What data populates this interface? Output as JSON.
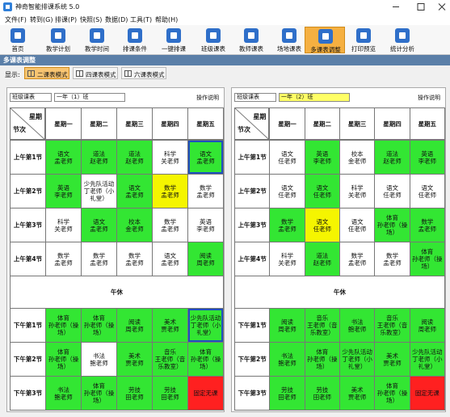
{
  "window": {
    "title": "神奇智能排课系统 5.0"
  },
  "menu": [
    "文件(F)",
    "转到(G)",
    "排课(P)",
    "快照(S)",
    "数据(D)",
    "工具(T)",
    "帮助(H)"
  ],
  "toolbar": [
    {
      "label": "首页",
      "active": false
    },
    {
      "label": "教学计划",
      "active": false
    },
    {
      "label": "教学时间",
      "active": false
    },
    {
      "label": "排课条件",
      "active": false
    },
    {
      "label": "一键排课",
      "active": false
    },
    {
      "label": "班级课表",
      "active": false
    },
    {
      "label": "教师课表",
      "active": false
    },
    {
      "label": "场地课表",
      "active": false
    },
    {
      "label": "多课表调整",
      "active": true
    },
    {
      "label": "打印预览",
      "active": false
    },
    {
      "label": "统计分析",
      "active": false
    }
  ],
  "section_title": "多课表调整",
  "display": {
    "label": "显示:",
    "modes": [
      {
        "label": "二课表模式",
        "active": true
      },
      {
        "label": "四课表模式",
        "active": false
      },
      {
        "label": "六课表模式",
        "active": false
      }
    ]
  },
  "panels": [
    {
      "type_select": "班级课表",
      "class_select": "一年（1）班",
      "class_select_color": "#ffffff",
      "help": "操作说明",
      "corner": {
        "top": "星期",
        "bottom": "节次"
      },
      "days": [
        "星期一",
        "星期二",
        "星期三",
        "星期四",
        "星期五"
      ],
      "rows": [
        {
          "label": "上午第1节",
          "cells": [
            {
              "lines": [
                "语文",
                "孟老师"
              ],
              "bg": "#33e633"
            },
            {
              "lines": [
                "道法",
                "赵老师"
              ],
              "bg": "#33e633"
            },
            {
              "lines": [
                "道法",
                "赵老师"
              ],
              "bg": "#33e633"
            },
            {
              "lines": [
                "科学",
                "关老师"
              ],
              "bg": "#ffffff"
            },
            {
              "lines": [
                "语文",
                "孟老师"
              ],
              "bg": "#33e633",
              "selected": true
            }
          ]
        },
        {
          "label": "上午第2节",
          "cells": [
            {
              "lines": [
                "英语",
                "李老师"
              ],
              "bg": "#33e633"
            },
            {
              "lines": [
                "少先队活动",
                "丁老师（小礼堂）"
              ],
              "bg": "#ffffff"
            },
            {
              "lines": [
                "语文",
                "孟老师"
              ],
              "bg": "#33e633"
            },
            {
              "lines": [
                "数学",
                "孟老师"
              ],
              "bg": "#f5f500"
            },
            {
              "lines": [
                "数学",
                "孟老师"
              ],
              "bg": "#ffffff"
            }
          ]
        },
        {
          "label": "上午第3节",
          "cells": [
            {
              "lines": [
                "科学",
                "关老师"
              ],
              "bg": "#ffffff"
            },
            {
              "lines": [
                "语文",
                "孟老师"
              ],
              "bg": "#33e633"
            },
            {
              "lines": [
                "校本",
                "金老师"
              ],
              "bg": "#33e633"
            },
            {
              "lines": [
                "数学",
                "孟老师"
              ],
              "bg": "#ffffff"
            },
            {
              "lines": [
                "英语",
                "李老师"
              ],
              "bg": "#ffffff"
            }
          ]
        },
        {
          "label": "上午第4节",
          "cells": [
            {
              "lines": [
                "数学",
                "孟老师"
              ],
              "bg": "#ffffff"
            },
            {
              "lines": [
                "数学",
                "孟老师"
              ],
              "bg": "#ffffff"
            },
            {
              "lines": [
                "数学",
                "孟老师"
              ],
              "bg": "#ffffff"
            },
            {
              "lines": [
                "语文",
                "孟老师"
              ],
              "bg": "#ffffff"
            },
            {
              "lines": [
                "阅读",
                "周老师"
              ],
              "bg": "#33e633"
            }
          ]
        },
        {
          "label": "午休"
        },
        {
          "label": "下午第1节",
          "cells": [
            {
              "lines": [
                "体育",
                "孙老师（操场）"
              ],
              "bg": "#33e633"
            },
            {
              "lines": [
                "体育",
                "孙老师（操场）"
              ],
              "bg": "#33e633"
            },
            {
              "lines": [
                "阅读",
                "周老师"
              ],
              "bg": "#33e633"
            },
            {
              "lines": [
                "美术",
                "贾老师"
              ],
              "bg": "#33e633"
            },
            {
              "lines": [
                "少先队活动",
                "丁老师（小礼堂）"
              ],
              "bg": "#33e633",
              "selected": true
            }
          ]
        },
        {
          "label": "下午第2节",
          "cells": [
            {
              "lines": [
                "体育",
                "孙老师（操场）"
              ],
              "bg": "#33e633"
            },
            {
              "lines": [
                "书法",
                "鲍老师"
              ],
              "bg": "#ffffff"
            },
            {
              "lines": [
                "美术",
                "贾老师"
              ],
              "bg": "#33e633"
            },
            {
              "lines": [
                "音乐",
                "王老师（音乐教室）"
              ],
              "bg": "#33e633"
            },
            {
              "lines": [
                "体育",
                "孙老师（操场）"
              ],
              "bg": "#33e633"
            }
          ]
        },
        {
          "label": "下午第3节",
          "cells": [
            {
              "lines": [
                "书法",
                "鲍老师"
              ],
              "bg": "#33e633"
            },
            {
              "lines": [
                "体育",
                "孙老师（操场）"
              ],
              "bg": "#33e633"
            },
            {
              "lines": [
                "劳技",
                "田老师"
              ],
              "bg": "#33e633"
            },
            {
              "lines": [
                "劳技",
                "田老师"
              ],
              "bg": "#33e633"
            },
            {
              "lines": [
                "固定无课"
              ],
              "bg": "#ff2020"
            }
          ]
        }
      ]
    },
    {
      "type_select": "班级课表",
      "class_select": "一年（2）班",
      "class_select_color": "#ffff66",
      "help": "操作说明",
      "corner": {
        "top": "星期",
        "bottom": "节次"
      },
      "days": [
        "星期一",
        "星期二",
        "星期三",
        "星期四",
        "星期五"
      ],
      "rows": [
        {
          "label": "上午第1节",
          "cells": [
            {
              "lines": [
                "语文",
                "任老师"
              ],
              "bg": "#ffffff"
            },
            {
              "lines": [
                "英语",
                "李老师"
              ],
              "bg": "#33e633"
            },
            {
              "lines": [
                "校本",
                "金老师"
              ],
              "bg": "#ffffff"
            },
            {
              "lines": [
                "道法",
                "赵老师"
              ],
              "bg": "#33e633"
            },
            {
              "lines": [
                "英语",
                "李老师"
              ],
              "bg": "#33e633"
            }
          ]
        },
        {
          "label": "上午第2节",
          "cells": [
            {
              "lines": [
                "语文",
                "任老师"
              ],
              "bg": "#ffffff"
            },
            {
              "lines": [
                "语文",
                "任老师"
              ],
              "bg": "#33e633"
            },
            {
              "lines": [
                "科学",
                "关老师"
              ],
              "bg": "#ffffff"
            },
            {
              "lines": [
                "语文",
                "任老师"
              ],
              "bg": "#ffffff"
            },
            {
              "lines": [
                "语文",
                "任老师"
              ],
              "bg": "#ffffff"
            }
          ]
        },
        {
          "label": "上午第3节",
          "cells": [
            {
              "lines": [
                "数学",
                "孟老师"
              ],
              "bg": "#33e633"
            },
            {
              "lines": [
                "语文",
                "任老师"
              ],
              "bg": "#f5f500"
            },
            {
              "lines": [
                "语文",
                "任老师"
              ],
              "bg": "#ffffff"
            },
            {
              "lines": [
                "体育",
                "孙老师（操场）"
              ],
              "bg": "#33e633"
            },
            {
              "lines": [
                "数学",
                "孟老师"
              ],
              "bg": "#33e633"
            }
          ]
        },
        {
          "label": "上午第4节",
          "cells": [
            {
              "lines": [
                "科学",
                "关老师"
              ],
              "bg": "#ffffff"
            },
            {
              "lines": [
                "道法",
                "赵老师"
              ],
              "bg": "#33e633"
            },
            {
              "lines": [
                "数学",
                "孟老师"
              ],
              "bg": "#ffffff"
            },
            {
              "lines": [
                "数学",
                "孟老师"
              ],
              "bg": "#ffffff"
            },
            {
              "lines": [
                "体育",
                "孙老师（操场）"
              ],
              "bg": "#33e633"
            }
          ]
        },
        {
          "label": "午休"
        },
        {
          "label": "下午第1节",
          "cells": [
            {
              "lines": [
                "阅读",
                "周老师"
              ],
              "bg": "#33e633"
            },
            {
              "lines": [
                "音乐",
                "王老师（音乐教室）"
              ],
              "bg": "#33e633"
            },
            {
              "lines": [
                "书法",
                "鲍老师"
              ],
              "bg": "#33e633"
            },
            {
              "lines": [
                "音乐",
                "王老师（音乐教室）"
              ],
              "bg": "#33e633"
            },
            {
              "lines": [
                "阅读",
                "周老师"
              ],
              "bg": "#33e633"
            }
          ]
        },
        {
          "label": "下午第2节",
          "cells": [
            {
              "lines": [
                "书法",
                "鲍老师"
              ],
              "bg": "#33e633"
            },
            {
              "lines": [
                "体育",
                "孙老师（操场）"
              ],
              "bg": "#33e633"
            },
            {
              "lines": [
                "少先队活动",
                "丁老师（小礼堂）"
              ],
              "bg": "#33e633"
            },
            {
              "lines": [
                "美术",
                "贾老师"
              ],
              "bg": "#33e633"
            },
            {
              "lines": [
                "少先队活动",
                "丁老师（小礼堂）"
              ],
              "bg": "#33e633"
            }
          ]
        },
        {
          "label": "下午第3节",
          "cells": [
            {
              "lines": [
                "劳技",
                "田老师"
              ],
              "bg": "#33e633"
            },
            {
              "lines": [
                "劳技",
                "田老师"
              ],
              "bg": "#33e633"
            },
            {
              "lines": [
                "美术",
                "贾老师"
              ],
              "bg": "#33e633"
            },
            {
              "lines": [
                "体育",
                "孙老师（操场）"
              ],
              "bg": "#33e633"
            },
            {
              "lines": [
                "固定无课"
              ],
              "bg": "#ff2020"
            }
          ]
        }
      ]
    }
  ]
}
